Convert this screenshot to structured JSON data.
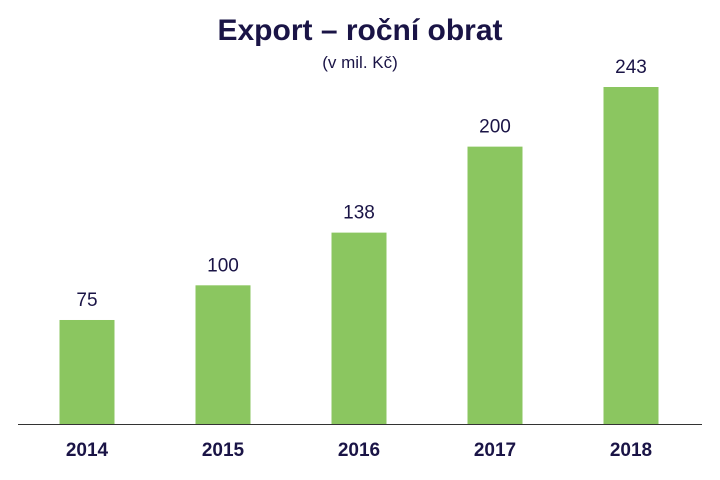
{
  "chart_data": {
    "type": "bar",
    "title": "Export – roční obrat",
    "subtitle": "(v mil. Kč)",
    "categories": [
      "2014",
      "2015",
      "2016",
      "2017",
      "2018"
    ],
    "values": [
      75,
      100,
      138,
      200,
      243
    ],
    "ylim": [
      0,
      243
    ],
    "grid": false,
    "bar_color": "#8bc660",
    "axis_color": "#333333",
    "text_color": "#1a1446"
  }
}
